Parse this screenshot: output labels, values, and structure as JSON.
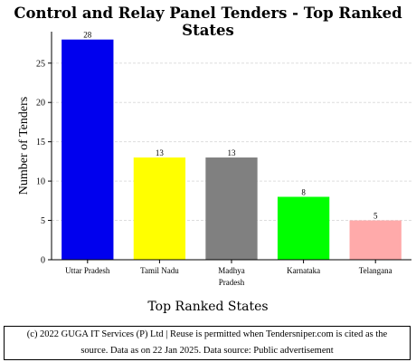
{
  "chart_data": {
    "type": "bar",
    "title": "Control and Relay Panel Tenders - Top Ranked States",
    "xlabel": "Top Ranked States",
    "ylabel": "Number of Tenders",
    "categories": [
      "Uttar Pradesh",
      "Tamil Nadu",
      "Madhya Pradesh",
      "Karnataka",
      "Telangana"
    ],
    "category_lines": [
      [
        "Uttar Pradesh"
      ],
      [
        "Tamil Nadu"
      ],
      [
        "Madhya",
        "Pradesh"
      ],
      [
        "Karnataka"
      ],
      [
        "Telangana"
      ]
    ],
    "values": [
      28,
      13,
      13,
      8,
      5
    ],
    "colors": [
      "#0000ee",
      "#ffff00",
      "#808080",
      "#00ff00",
      "#ffaaaa"
    ],
    "ylim": [
      0,
      29
    ],
    "yticks": [
      0,
      5,
      10,
      15,
      20,
      25
    ],
    "grid": true,
    "legend": "none"
  },
  "footer": {
    "line1": "(c) 2022 GUGA IT Services (P) Ltd | Reuse is permitted when Tendersniper.com is cited as the",
    "line2": "source. Data as on 22 Jan 2025. Data source: Public advertisement"
  }
}
